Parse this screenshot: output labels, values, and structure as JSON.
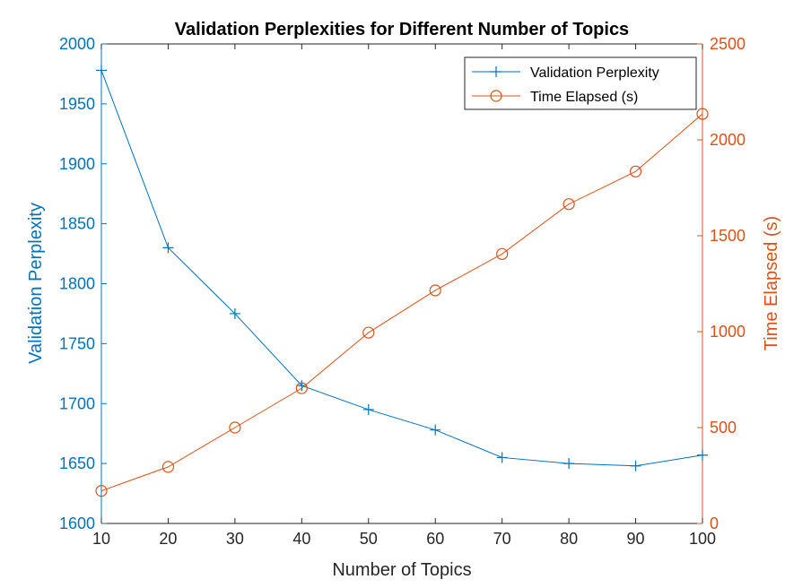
{
  "chart_data": {
    "type": "line",
    "title": "Validation Perplexities for Different Number of Topics",
    "xlabel": "Number of Topics",
    "ylabel_left": "Validation Perplexity",
    "ylabel_right": "Time Elapsed (s)",
    "x": [
      10,
      20,
      30,
      40,
      50,
      60,
      70,
      80,
      90,
      100
    ],
    "xlim": [
      10,
      100
    ],
    "xticks": [
      "10",
      "20",
      "30",
      "40",
      "50",
      "60",
      "70",
      "80",
      "90",
      "100"
    ],
    "ylim_left": [
      1600,
      2000
    ],
    "yticks_left": [
      "1600",
      "1650",
      "1700",
      "1750",
      "1800",
      "1850",
      "1900",
      "1950",
      "2000"
    ],
    "ylim_right": [
      0,
      2500
    ],
    "yticks_right": [
      "0",
      "500",
      "1000",
      "1500",
      "2000",
      "2500"
    ],
    "grid": false,
    "legend_position": "top-right",
    "series": [
      {
        "name": "Validation Perplexity",
        "axis": "left",
        "color": "#0072BD",
        "marker": "plus",
        "values": [
          1978,
          1830,
          1775,
          1715,
          1695,
          1678,
          1655,
          1650,
          1648,
          1657
        ]
      },
      {
        "name": "Time Elapsed (s)",
        "axis": "right",
        "color": "#D95319",
        "marker": "circle",
        "values": [
          170,
          295,
          500,
          705,
          995,
          1215,
          1405,
          1665,
          1835,
          2135
        ]
      }
    ]
  }
}
